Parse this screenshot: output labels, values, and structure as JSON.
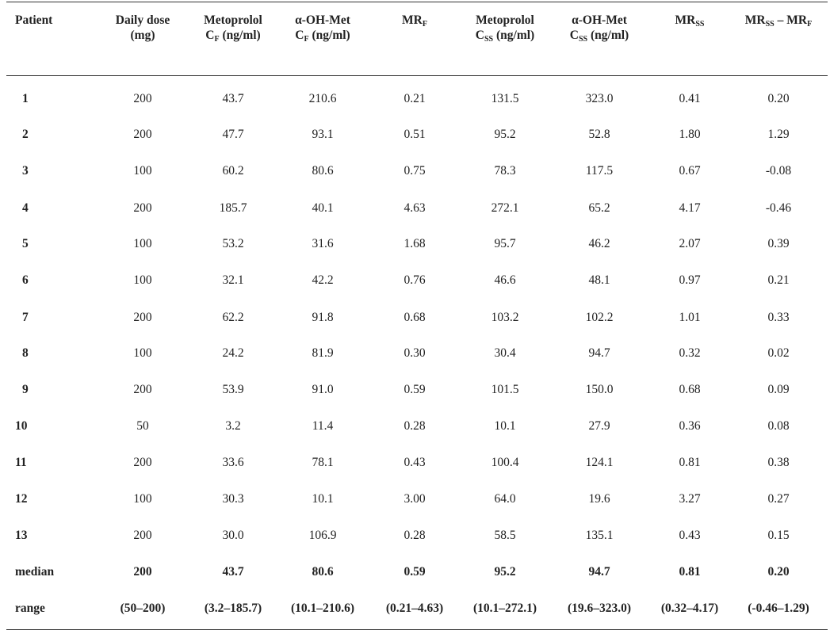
{
  "table": {
    "headers": [
      {
        "l1": "Patient",
        "l2": ""
      },
      {
        "l1": "Daily dose",
        "l2": "(mg)"
      },
      {
        "l1": "Metoprolol",
        "l2": "C",
        "sub": "F",
        "l2b": " (ng/ml)"
      },
      {
        "l1": "α-OH-Met",
        "l2": "C",
        "sub": "F",
        "l2b": " (ng/ml)"
      },
      {
        "l1": "MR",
        "sub1": "F"
      },
      {
        "l1": "Metoprolol",
        "l2": "C",
        "sub": "SS",
        "l2b": " (ng/ml)"
      },
      {
        "l1": "α-OH-Met",
        "l2": "C",
        "sub": "SS",
        "l2b": " (ng/ml)"
      },
      {
        "l1": "MR",
        "sub1": "SS"
      },
      {
        "l1": "MR",
        "sub1": "SS",
        "l1b": " – MR",
        "sub1b": "F"
      }
    ],
    "rows": [
      [
        "1",
        "200",
        "43.7",
        "210.6",
        "0.21",
        "131.5",
        "323.0",
        "0.41",
        "0.20"
      ],
      [
        "2",
        "200",
        "47.7",
        "93.1",
        "0.51",
        "95.2",
        "52.8",
        "1.80",
        "1.29"
      ],
      [
        "3",
        "100",
        "60.2",
        "80.6",
        "0.75",
        "78.3",
        "117.5",
        "0.67",
        "-0.08"
      ],
      [
        "4",
        "200",
        "185.7",
        "40.1",
        "4.63",
        "272.1",
        "65.2",
        "4.17",
        "-0.46"
      ],
      [
        "5",
        "100",
        "53.2",
        "31.6",
        "1.68",
        "95.7",
        "46.2",
        "2.07",
        "0.39"
      ],
      [
        "6",
        "100",
        "32.1",
        "42.2",
        "0.76",
        "46.6",
        "48.1",
        "0.97",
        "0.21"
      ],
      [
        "7",
        "200",
        "62.2",
        "91.8",
        "0.68",
        "103.2",
        "102.2",
        "1.01",
        "0.33"
      ],
      [
        "8",
        "100",
        "24.2",
        "81.9",
        "0.30",
        "30.4",
        "94.7",
        "0.32",
        "0.02"
      ],
      [
        "9",
        "200",
        "53.9",
        "91.0",
        "0.59",
        "101.5",
        "150.0",
        "0.68",
        "0.09"
      ],
      [
        "10",
        "50",
        "3.2",
        "11.4",
        "0.28",
        "10.1",
        "27.9",
        "0.36",
        "0.08"
      ],
      [
        "11",
        "200",
        "33.6",
        "78.1",
        "0.43",
        "100.4",
        "124.1",
        "0.81",
        "0.38"
      ],
      [
        "12",
        "100",
        "30.3",
        "10.1",
        "3.00",
        "64.0",
        "19.6",
        "3.27",
        "0.27"
      ],
      [
        "13",
        "200",
        "30.0",
        "106.9",
        "0.28",
        "58.5",
        "135.1",
        "0.43",
        "0.15"
      ]
    ],
    "summary": [
      [
        "median",
        "200",
        "43.7",
        "80.6",
        "0.59",
        "95.2",
        "94.7",
        "0.81",
        "0.20"
      ],
      [
        "range",
        "(50–200)",
        "(3.2–185.7)",
        "(10.1–210.6)",
        "(0.21–4.63)",
        "(10.1–272.1)",
        "(19.6–323.0)",
        "(0.32–4.17)",
        "(-0.46–1.29)"
      ]
    ]
  }
}
